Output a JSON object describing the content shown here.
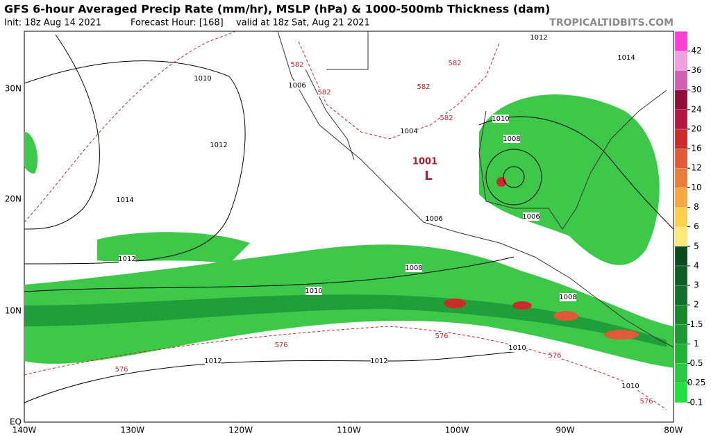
{
  "header": {
    "title": "GFS 6-hour Averaged Precip Rate (mm/hr), MSLP (hPa) & 1000-500mb Thickness (dam)",
    "init": "Init: 18z Aug 14 2021",
    "forecast_hour": "Forecast Hour: [168]",
    "valid": "valid at 18z Sat, Aug 21 2021",
    "watermark": "TROPICALTIDBITS.COM"
  },
  "map": {
    "lat_labels": [
      "30N",
      "20N",
      "10N",
      "EQ"
    ],
    "lon_labels": [
      "140W",
      "130W",
      "120W",
      "110W",
      "100W",
      "90W",
      "80W"
    ],
    "isobar_labels": [
      "1010",
      "1012",
      "1014",
      "1012",
      "1010",
      "1008",
      "1006",
      "1004",
      "1010",
      "1008",
      "1006",
      "1006",
      "1008",
      "1010",
      "1012",
      "1012",
      "1010",
      "1012",
      "1014"
    ],
    "thickness_labels": [
      "582",
      "582",
      "582",
      "582",
      "582",
      "576",
      "576",
      "576",
      "576",
      "576"
    ],
    "low": {
      "pressure": "1001",
      "symbol": "L"
    }
  },
  "colorbar": {
    "labels": [
      "0.1",
      "0.25",
      "0.5",
      "1",
      "1.5",
      "2",
      "3",
      "4",
      "5",
      "6",
      "8",
      "10",
      "12",
      "16",
      "20",
      "24",
      "30",
      "36",
      "42"
    ]
  }
}
